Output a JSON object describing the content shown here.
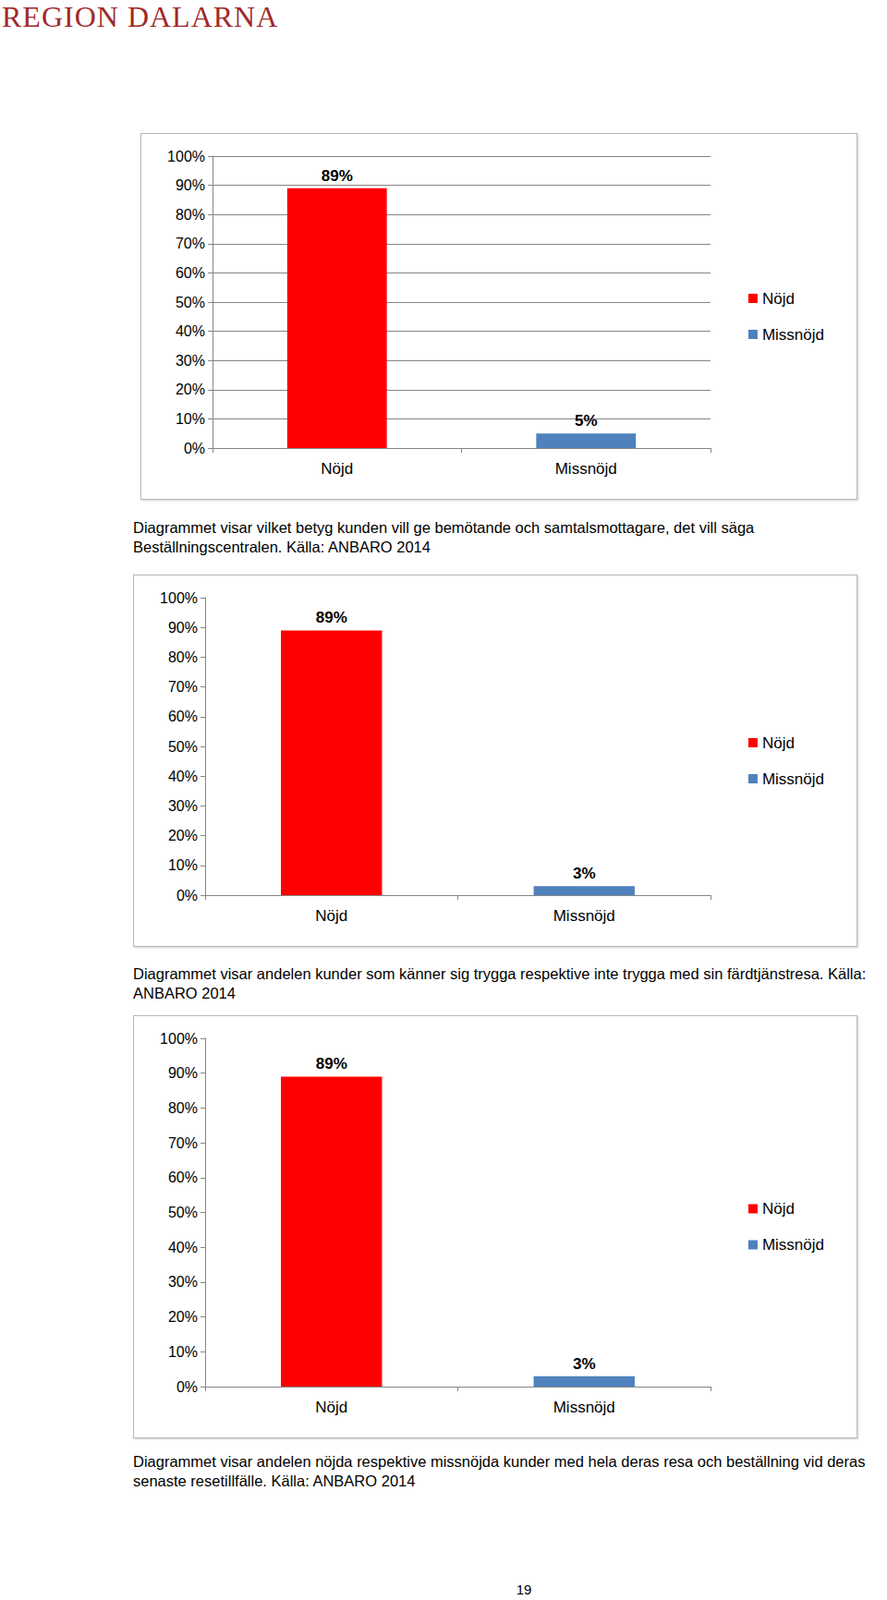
{
  "header": {
    "logo": "REGION DALARNA"
  },
  "chart_data": [
    {
      "type": "bar",
      "categories": [
        "Nöjd",
        "Missnöjd"
      ],
      "series": [
        {
          "name": "Nöjd",
          "color": "#ff0000",
          "values": [
            89,
            null
          ],
          "value_labels": [
            "89%",
            null
          ]
        },
        {
          "name": "Missnöjd",
          "color": "#4f81bd",
          "values": [
            null,
            5
          ],
          "value_labels": [
            null,
            "5%"
          ]
        }
      ],
      "ylim": [
        0,
        100
      ],
      "yticks": [
        {
          "value": 0,
          "label": "0%"
        },
        {
          "value": 10,
          "label": "10%"
        },
        {
          "value": 20,
          "label": "20%"
        },
        {
          "value": 30,
          "label": "30%"
        },
        {
          "value": 40,
          "label": "40%"
        },
        {
          "value": 50,
          "label": "50%"
        },
        {
          "value": 60,
          "label": "60%"
        },
        {
          "value": 70,
          "label": "70%"
        },
        {
          "value": 80,
          "label": "80%"
        },
        {
          "value": 90,
          "label": "90%"
        },
        {
          "value": 100,
          "label": "100%"
        }
      ],
      "grid": true,
      "legend": "right",
      "data_labels": true
    },
    {
      "type": "bar",
      "categories": [
        "Nöjd",
        "Missnöjd"
      ],
      "series": [
        {
          "name": "Nöjd",
          "color": "#ff0000",
          "values": [
            89,
            null
          ],
          "value_labels": [
            "89%",
            null
          ]
        },
        {
          "name": "Missnöjd",
          "color": "#4f81bd",
          "values": [
            null,
            3
          ],
          "value_labels": [
            null,
            "3%"
          ]
        }
      ],
      "ylim": [
        0,
        100
      ],
      "yticks": [
        {
          "value": 0,
          "label": "0%"
        },
        {
          "value": 10,
          "label": "10%"
        },
        {
          "value": 20,
          "label": "20%"
        },
        {
          "value": 30,
          "label": "30%"
        },
        {
          "value": 40,
          "label": "40%"
        },
        {
          "value": 50,
          "label": "50%"
        },
        {
          "value": 60,
          "label": "60%"
        },
        {
          "value": 70,
          "label": "70%"
        },
        {
          "value": 80,
          "label": "80%"
        },
        {
          "value": 90,
          "label": "90%"
        },
        {
          "value": 100,
          "label": "100%"
        }
      ],
      "grid": false,
      "legend": "right",
      "data_labels": true
    },
    {
      "type": "bar",
      "categories": [
        "Nöjd",
        "Missnöjd"
      ],
      "series": [
        {
          "name": "Nöjd",
          "color": "#ff0000",
          "values": [
            89,
            null
          ],
          "value_labels": [
            "89%",
            null
          ]
        },
        {
          "name": "Missnöjd",
          "color": "#4f81bd",
          "values": [
            null,
            3
          ],
          "value_labels": [
            null,
            "3%"
          ]
        }
      ],
      "ylim": [
        0,
        100
      ],
      "yticks": [
        {
          "value": 0,
          "label": "0%"
        },
        {
          "value": 10,
          "label": "10%"
        },
        {
          "value": 20,
          "label": "20%"
        },
        {
          "value": 30,
          "label": "30%"
        },
        {
          "value": 40,
          "label": "40%"
        },
        {
          "value": 50,
          "label": "50%"
        },
        {
          "value": 60,
          "label": "60%"
        },
        {
          "value": 70,
          "label": "70%"
        },
        {
          "value": 80,
          "label": "80%"
        },
        {
          "value": 90,
          "label": "90%"
        },
        {
          "value": 100,
          "label": "100%"
        }
      ],
      "grid": false,
      "legend": "right",
      "data_labels": true
    }
  ],
  "captions": [
    "Diagrammet visar vilket betyg kunden vill ge bemötande och samtalsmottagare, det vill säga Beställningscentralen. Källa: ANBARO 2014",
    "Diagrammet visar andelen kunder som känner sig trygga respektive inte trygga med sin färdtjänstresa. Källa: ANBARO 2014",
    "Diagrammet visar andelen nöjda respektive missnöjda kunder med hela deras resa och beställning vid deras senaste resetillfälle. Källa: ANBARO 2014"
  ],
  "page_number": "19"
}
